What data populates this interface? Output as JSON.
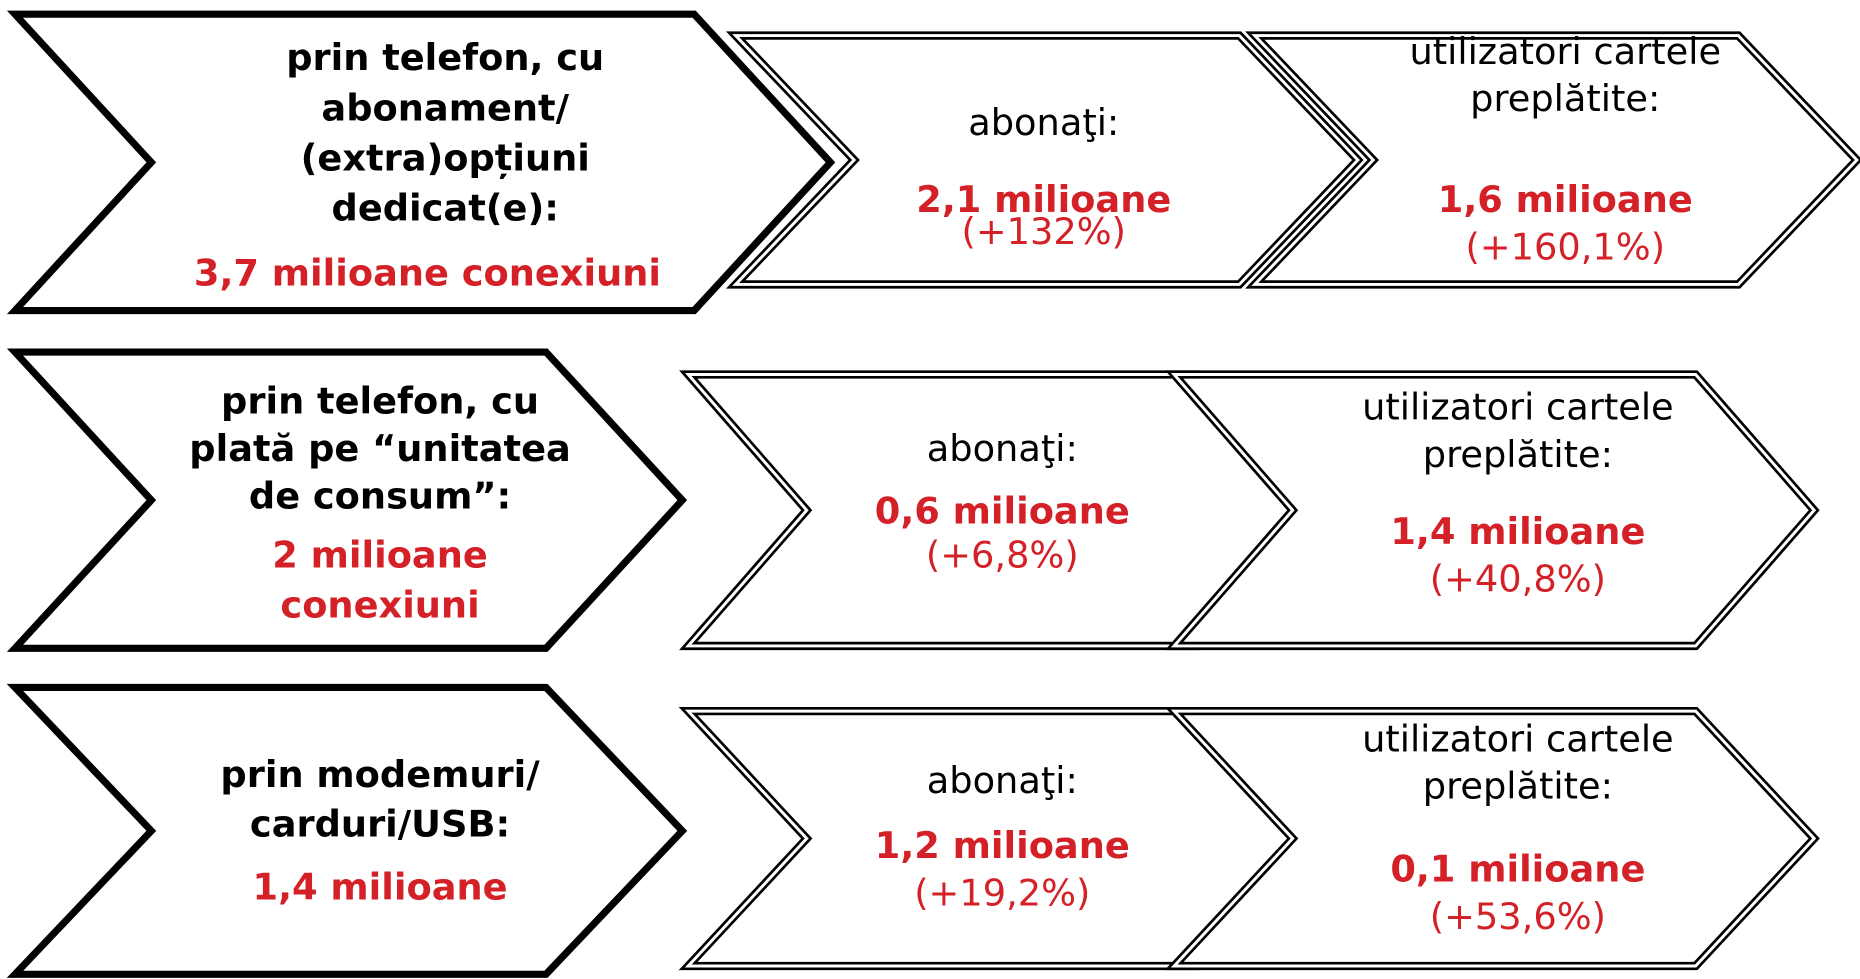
{
  "rows": [
    {
      "label": [
        "prin telefon, cu",
        "abonament/",
        "(extra)opțiuni",
        "dedicat(e):"
      ],
      "total": [
        "3,7 milioane conexiuni"
      ],
      "subscribers": {
        "label": [
          "abonaţi:"
        ],
        "value": "2,1 milioane",
        "change": "(+132%)"
      },
      "prepaid": {
        "label": [
          "utilizatori cartele",
          "preplătite:"
        ],
        "value": "1,6 milioane",
        "change": "(+160,1%)"
      }
    },
    {
      "label": [
        "prin telefon, cu",
        "plată pe “unitatea",
        "de consum”:"
      ],
      "total": [
        "2 milioane",
        "conexiuni"
      ],
      "subscribers": {
        "label": [
          "abonaţi:"
        ],
        "value": "0,6 milioane",
        "change": "(+6,8%)"
      },
      "prepaid": {
        "label": [
          "utilizatori cartele",
          "preplătite:"
        ],
        "value": "1,4 milioane",
        "change": "(+40,8%)"
      }
    },
    {
      "label": [
        "prin modemuri/",
        "carduri/USB:"
      ],
      "total": [
        "1,4 milioane"
      ],
      "subscribers": {
        "label": [
          "abonaţi:"
        ],
        "value": "1,2 milioane",
        "change": "(+19,2%)"
      },
      "prepaid": {
        "label": [
          "utilizatori cartele",
          "preplătite:"
        ],
        "value": "0,1 milioane",
        "change": "(+53,6%)"
      }
    }
  ]
}
